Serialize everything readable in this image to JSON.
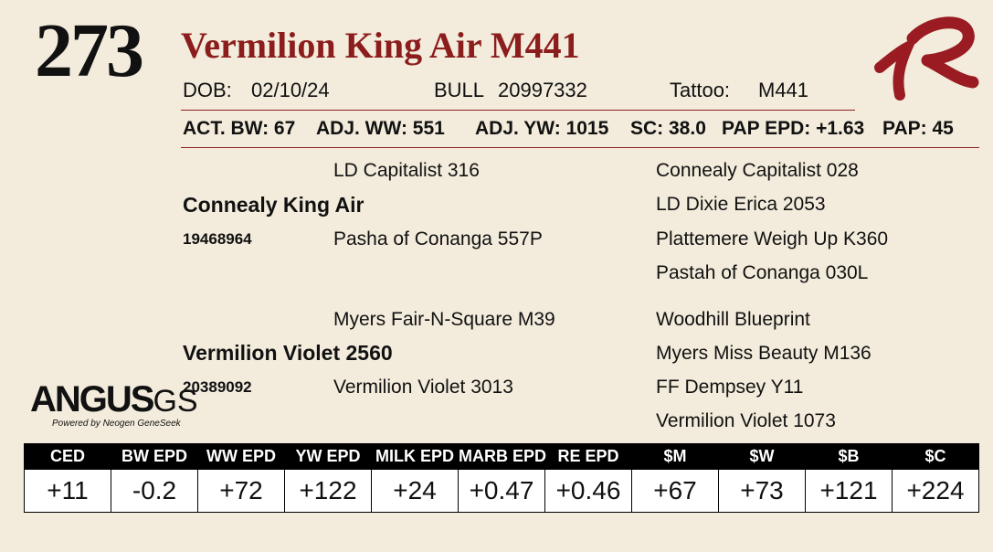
{
  "lot_number": "273",
  "title": "Vermilion King Air M441",
  "header": {
    "dob_label": "DOB:",
    "dob": "02/10/24",
    "sex": "BULL",
    "registration": "20997332",
    "tattoo_label": "Tattoo:",
    "tattoo": "M441"
  },
  "stats": {
    "act_bw": "ACT. BW: 67",
    "adj_ww": "ADJ. WW: 551",
    "adj_yw": "ADJ. YW: 1015",
    "sc": "SC: 38.0",
    "pap_epd": "PAP EPD: +1.63",
    "pap": "PAP: 45"
  },
  "pedigree": {
    "sire": {
      "name": "Connealy King Air",
      "reg": "19468964"
    },
    "sire_sire": "LD Capitalist 316",
    "sire_dam": "Pasha of Conanga 557P",
    "sire_sire_sire": "Connealy Capitalist 028",
    "sire_sire_dam": "LD Dixie Erica 2053",
    "sire_dam_sire": "Plattemere Weigh Up K360",
    "sire_dam_dam": "Pastah of Conanga 030L",
    "dam": {
      "name": "Vermilion Violet 2560",
      "reg": "20389092"
    },
    "dam_sire": "Myers Fair-N-Square M39",
    "dam_dam": "Vermilion Violet 3013",
    "dam_sire_sire": "Woodhill Blueprint",
    "dam_sire_dam": "Myers Miss Beauty M136",
    "dam_dam_sire": "FF Dempsey Y11",
    "dam_dam_dam": "Vermilion Violet 1073"
  },
  "logo": {
    "main": "ANGUS",
    "suffix": "GS",
    "sub": "Powered by Neogen GeneSeek"
  },
  "epd_table": {
    "headers": [
      "CED",
      "BW EPD",
      "WW EPD",
      "YW EPD",
      "MILK EPD",
      "MARB EPD",
      "RE EPD",
      "$M",
      "$W",
      "$B",
      "$C"
    ],
    "values": [
      "+11",
      "-0.2",
      "+72",
      "+122",
      "+24",
      "+0.47",
      "+0.46",
      "+67",
      "+73",
      "+121",
      "+224"
    ]
  },
  "colors": {
    "accent": "#8c1d1d",
    "background": "#f3ecdc"
  }
}
